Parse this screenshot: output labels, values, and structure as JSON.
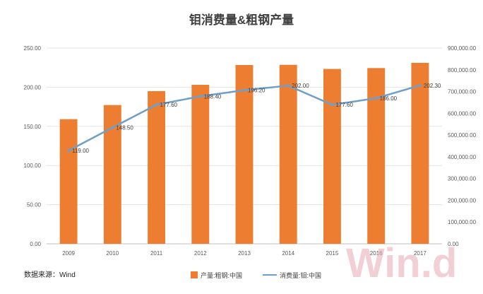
{
  "chart_data": {
    "type": "bar-line-combo",
    "title": "钼消费量&粗钢产量",
    "categories": [
      "2009",
      "2010",
      "2011",
      "2012",
      "2013",
      "2014",
      "2015",
      "2016",
      "2017"
    ],
    "series": [
      {
        "name": "产量:粗钢:中国",
        "type": "bar",
        "axis": "right",
        "color": "#ed7d31",
        "values": [
          573000,
          638000,
          702000,
          731000,
          822000,
          823000,
          804000,
          808000,
          832000
        ]
      },
      {
        "name": "消费量:钼:中国",
        "type": "line",
        "axis": "left",
        "color": "#6f9fc9",
        "values": [
          119.0,
          148.5,
          177.6,
          188.4,
          196.2,
          202.0,
          177.6,
          186.0,
          202.3
        ],
        "labels": [
          "119.00",
          "148.50",
          "177.60",
          "188.40",
          "196.20",
          "202.00",
          "177.60",
          "186.00",
          "202.30"
        ]
      }
    ],
    "y_left": {
      "min": 0,
      "max": 250,
      "step": 50,
      "ticks": [
        "0.00",
        "50.00",
        "100.00",
        "150.00",
        "200.00",
        "250.00"
      ]
    },
    "y_right": {
      "min": 0,
      "max": 900000,
      "step": 100000,
      "ticks": [
        "0.00",
        "100,000.00",
        "200,000.00",
        "300,000.00",
        "400,000.00",
        "500,000.00",
        "600,000.00",
        "700,000.00",
        "800,000.00",
        "900,000.00"
      ]
    },
    "grid": true,
    "legend_position": "bottom"
  },
  "source_note": "数据来源：Wind",
  "watermark": "Win.d"
}
